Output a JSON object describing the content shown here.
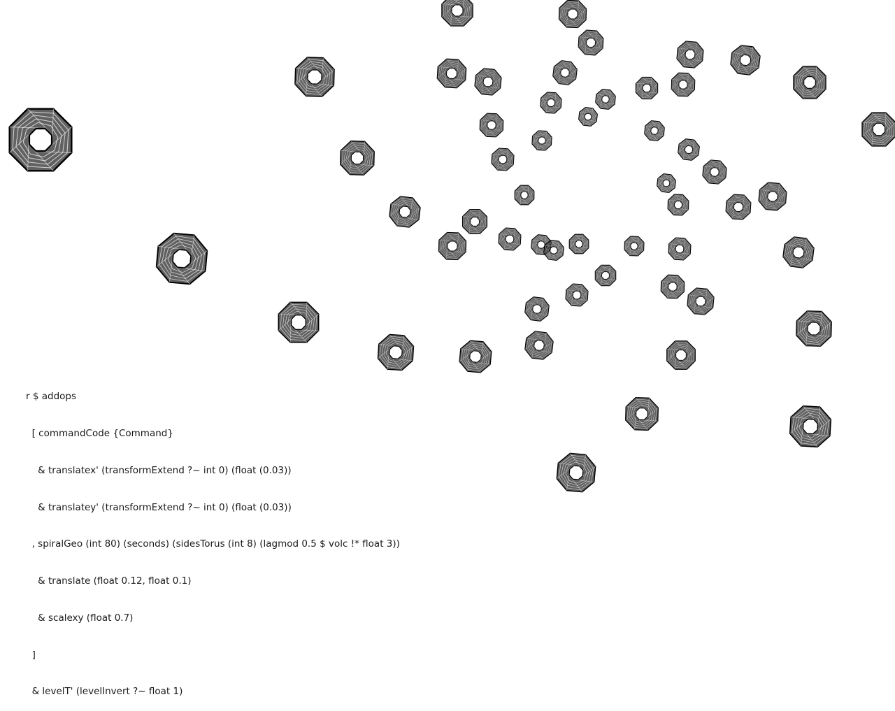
{
  "code": {
    "lines": [
      "r $ addops",
      "  [ commandCode {Command}",
      "    & translatex' (transformExtend ?~ int 0) (float (0.03))",
      "    & translatey' (transformExtend ?~ int 0) (float (0.03))",
      "  , spiralGeo (int 80) (seconds) (sidesTorus (int 8) (lagmod 0.5 $ volc !* float 3))",
      "    & translate (float 0.12, float 0.1)",
      "    & scalexy (float 0.7)",
      "  ]",
      "  & levelT' (levelInvert ?~ float 1)"
    ]
  },
  "scene": {
    "shape": "octagon-torus-wireframe",
    "stroke_color": "#000000",
    "background_color": "#ffffff"
  }
}
